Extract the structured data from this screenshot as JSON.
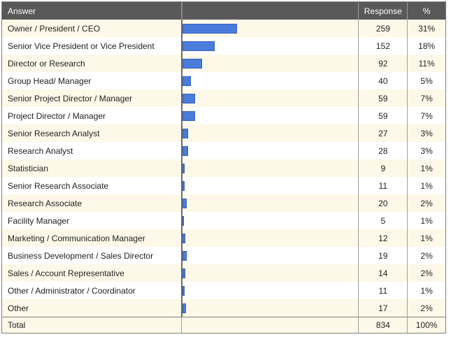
{
  "table": {
    "columns": {
      "answer": "Answer",
      "bar": "",
      "response": "Response",
      "percent": "%"
    },
    "rows": [
      {
        "label": "Owner / President / CEO",
        "response": "259",
        "percent": "31%",
        "value": 259
      },
      {
        "label": "Senior Vice President or Vice President",
        "response": "152",
        "percent": "18%",
        "value": 152
      },
      {
        "label": "Director or Research",
        "response": "92",
        "percent": "11%",
        "value": 92
      },
      {
        "label": "Group Head/ Manager",
        "response": "40",
        "percent": "5%",
        "value": 40
      },
      {
        "label": "Senior Project Director / Manager",
        "response": "59",
        "percent": "7%",
        "value": 59
      },
      {
        "label": "Project Director / Manager",
        "response": "59",
        "percent": "7%",
        "value": 59
      },
      {
        "label": "Senior Research Analyst",
        "response": "27",
        "percent": "3%",
        "value": 27
      },
      {
        "label": "Research Analyst",
        "response": "28",
        "percent": "3%",
        "value": 28
      },
      {
        "label": "Statistician",
        "response": "9",
        "percent": "1%",
        "value": 9
      },
      {
        "label": "Senior Research Associate",
        "response": "11",
        "percent": "1%",
        "value": 11
      },
      {
        "label": "Research Associate",
        "response": "20",
        "percent": "2%",
        "value": 20
      },
      {
        "label": "Facility Manager",
        "response": "5",
        "percent": "1%",
        "value": 5
      },
      {
        "label": "Marketing / Communication Manager",
        "response": "12",
        "percent": "1%",
        "value": 12
      },
      {
        "label": "Business Development / Sales Director",
        "response": "19",
        "percent": "2%",
        "value": 19
      },
      {
        "label": "Sales / Account Representative",
        "response": "14",
        "percent": "2%",
        "value": 14
      },
      {
        "label": "Other / Administrator / Coordinator",
        "response": "11",
        "percent": "1%",
        "value": 11
      },
      {
        "label": "Other",
        "response": "17",
        "percent": "2%",
        "value": 17
      }
    ],
    "total": {
      "label": "Total",
      "response": "834",
      "percent": "100%"
    }
  },
  "chart_data": {
    "type": "bar",
    "orientation": "horizontal",
    "title": "",
    "xlabel": "",
    "ylabel": "",
    "categories": [
      "Owner / President / CEO",
      "Senior Vice President or Vice President",
      "Director or Research",
      "Group Head/ Manager",
      "Senior Project Director / Manager",
      "Project Director / Manager",
      "Senior Research Analyst",
      "Research Analyst",
      "Statistician",
      "Senior Research Associate",
      "Research Associate",
      "Facility Manager",
      "Marketing / Communication Manager",
      "Business Development / Sales Director",
      "Sales / Account Representative",
      "Other / Administrator / Coordinator",
      "Other"
    ],
    "values": [
      259,
      152,
      92,
      40,
      59,
      59,
      27,
      28,
      9,
      11,
      20,
      5,
      12,
      19,
      14,
      11,
      17
    ],
    "percent_labels": [
      "31%",
      "18%",
      "11%",
      "5%",
      "7%",
      "7%",
      "3%",
      "3%",
      "1%",
      "1%",
      "2%",
      "1%",
      "1%",
      "2%",
      "2%",
      "1%",
      "2%"
    ],
    "total": 834,
    "total_percent": "100%",
    "legend": "none",
    "grid": false
  },
  "colors": {
    "header_background": "#595959",
    "header_text": "#ffffff",
    "row_stripe": "#fdf8e7",
    "bar_fill": "#4a7cdb",
    "bar_border": "#3560bb",
    "table_border": "#808080"
  }
}
